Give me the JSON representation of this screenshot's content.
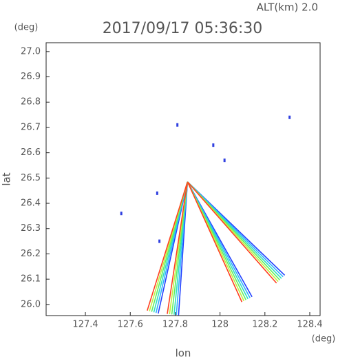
{
  "chart_data": {
    "type": "radar-scan",
    "title": "2017/09/17 05:36:30",
    "subtitle": "ALT(km) 2.0",
    "x_label": "lon",
    "y_label": "lat",
    "x_unit": "(deg)",
    "y_unit": "(deg)",
    "xlim": [
      127.225,
      128.446
    ],
    "ylim": [
      25.956,
      27.035
    ],
    "xticks": [
      127.4,
      127.6,
      127.8,
      128.0,
      128.2,
      128.4
    ],
    "yticks": [
      {
        "value": 26.0,
        "label": "26.0"
      },
      26.1,
      26.2,
      26.3,
      26.4,
      26.5,
      26.6,
      26.7,
      26.8,
      26.9,
      {
        "value": 27.0,
        "label": "27.0"
      }
    ],
    "colors": [
      "#2040ff",
      "#30b0ff",
      "#30e0c0",
      "#60f060",
      "#c0f040",
      "#ff4020"
    ],
    "beams": [
      {
        "x": [
          127.855,
          127.7
        ],
        "y": [
          26.485,
          25.97
        ]
      },
      {
        "x": [
          127.855,
          127.79
        ],
        "y": [
          26.485,
          25.96
        ]
      },
      {
        "x": [
          127.855,
          128.12
        ],
        "y": [
          26.485,
          26.02
        ]
      },
      {
        "x": [
          127.855,
          128.27
        ],
        "y": [
          26.485,
          26.1
        ]
      }
    ],
    "echoes": {
      "x": [
        127.81,
        127.97,
        128.02,
        127.72,
        127.56,
        127.73,
        128.31
      ],
      "y": [
        26.71,
        26.63,
        26.57,
        26.44,
        26.36,
        26.25,
        26.74
      ],
      "color": "#3040e0"
    }
  }
}
